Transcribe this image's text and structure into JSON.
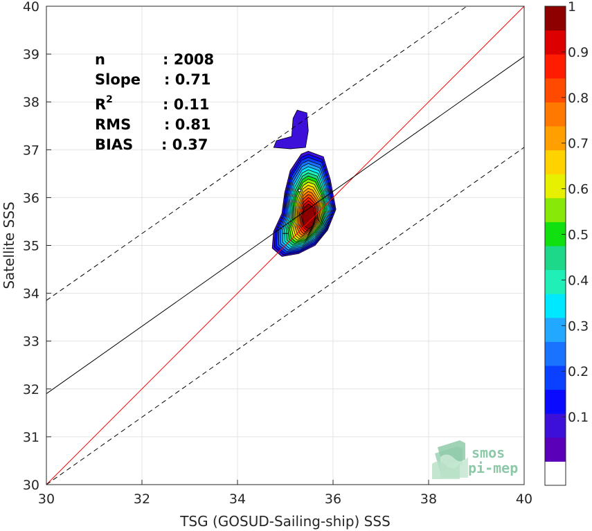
{
  "chart_data": {
    "type": "heatmap",
    "title": "",
    "xlabel": "TSG (GOSUD-Sailing-ship) SSS",
    "ylabel": "Satellite SSS",
    "xlim": [
      30,
      40
    ],
    "ylim": [
      30,
      40
    ],
    "xticks": [
      30,
      32,
      34,
      36,
      38,
      40
    ],
    "yticks": [
      30,
      31,
      32,
      33,
      34,
      35,
      36,
      37,
      38,
      39,
      40
    ],
    "grid": true,
    "stats": [
      {
        "label": "n",
        "value": ": 2008"
      },
      {
        "label": "Slope",
        "value": ": 0.71"
      },
      {
        "label": "R",
        "sup": "2",
        "value": ": 0.11"
      },
      {
        "label": "RMS",
        "value": ": 0.81"
      },
      {
        "label": "BIAS",
        "value": ": 0.37"
      }
    ],
    "lines": [
      {
        "role": "one-to-one",
        "color": "#ff0000",
        "points": [
          [
            30,
            30
          ],
          [
            40,
            40
          ]
        ]
      },
      {
        "role": "regression",
        "color": "#000000",
        "points": [
          [
            30,
            31.9
          ],
          [
            40,
            38.95
          ]
        ]
      },
      {
        "role": "regression-upper",
        "color": "#000000",
        "dashed": true,
        "points": [
          [
            30,
            33.85
          ],
          [
            38.8,
            40
          ]
        ]
      },
      {
        "role": "regression-lower",
        "color": "#000000",
        "dashed": true,
        "points": [
          [
            30,
            30.0
          ],
          [
            40,
            37.05
          ]
        ]
      }
    ],
    "density_peak": {
      "x": 35.48,
      "y": 35.58,
      "value": 1.0
    },
    "density_secondary": {
      "x": 35.3,
      "y": 36.15
    },
    "colorbar": {
      "ticks": [
        0.1,
        0.2,
        0.3,
        0.4,
        0.5,
        0.6,
        0.7,
        0.8,
        0.9,
        1
      ],
      "tick_labels": [
        "0.1",
        "0.2",
        "0.3",
        "0.4",
        "0.5",
        "0.6",
        "0.7",
        "0.8",
        "0.9",
        "1"
      ],
      "colors": [
        "#ffffff",
        "#5a00b8",
        "#3c10d8",
        "#0a0aff",
        "#0a40ff",
        "#1a73ff",
        "#22a8ff",
        "#00e8ff",
        "#20f0b8",
        "#1ed88a",
        "#10e010",
        "#88e808",
        "#e6f000",
        "#ffd200",
        "#ffa000",
        "#ff7800",
        "#ff4a00",
        "#ff1c00",
        "#dc0000",
        "#8e0000"
      ]
    }
  },
  "logo": {
    "line1": "smos",
    "line2": "pi-mep"
  }
}
